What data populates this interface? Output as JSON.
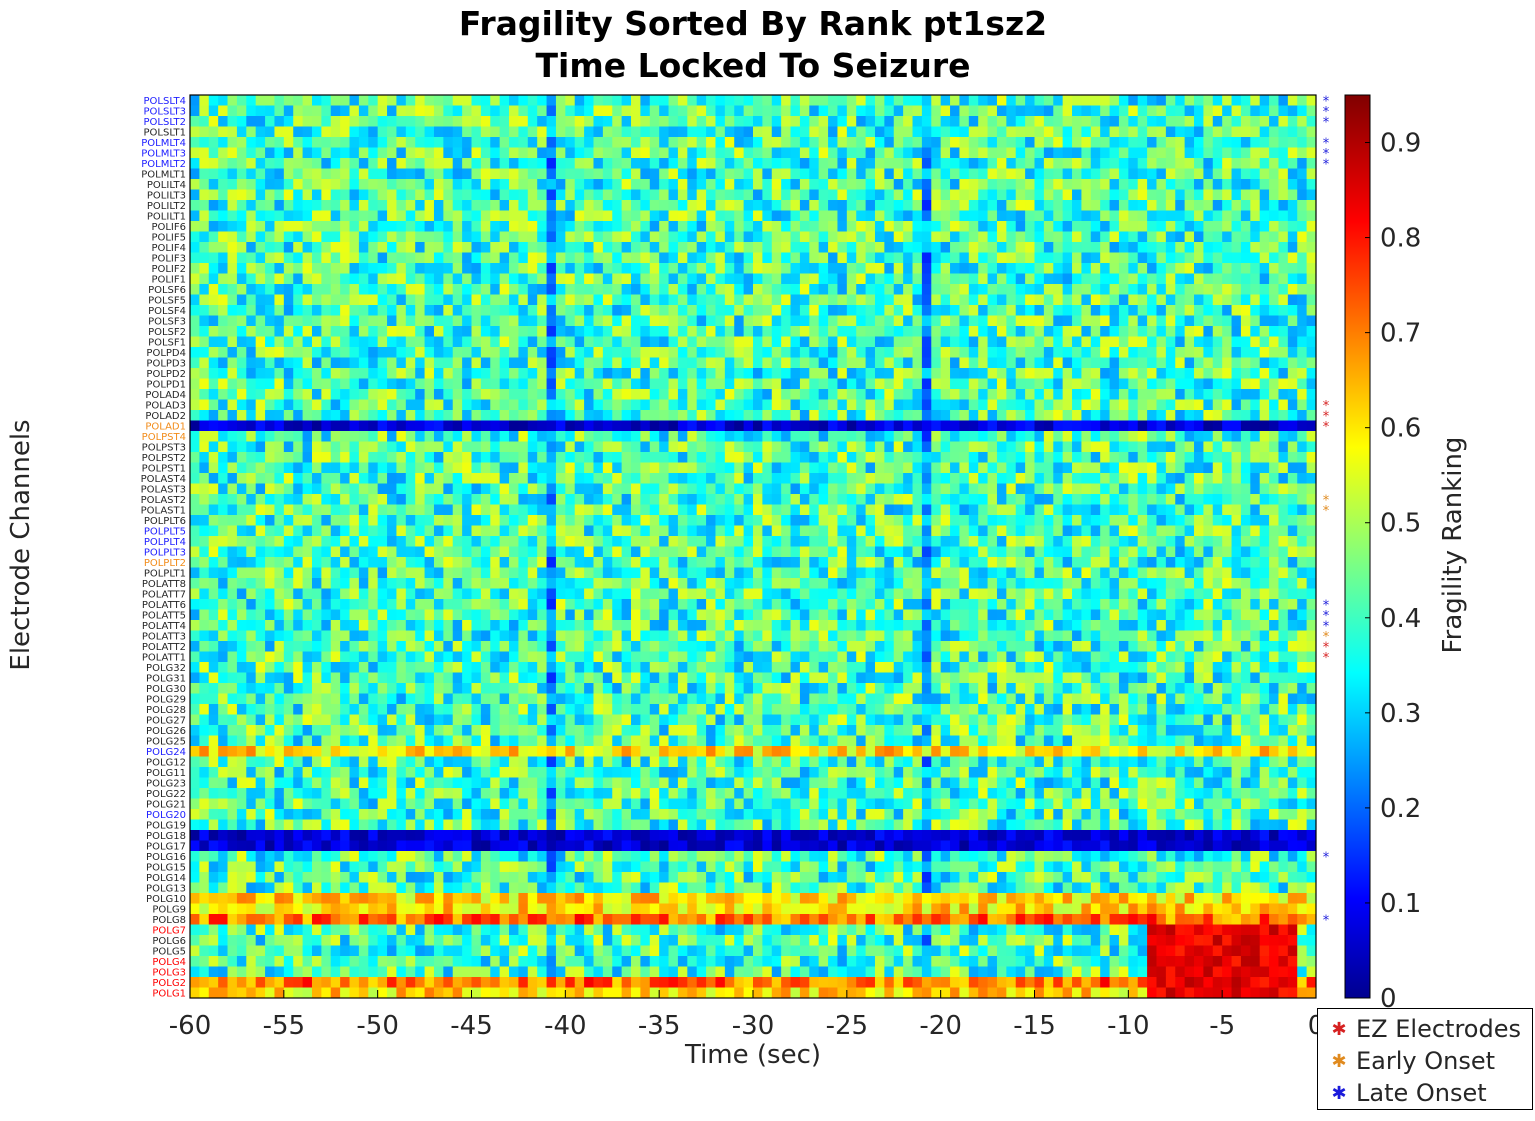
{
  "chart_data": {
    "type": "heatmap",
    "title_lines": [
      "Fragility Sorted By Rank pt1sz2",
      "Time Locked To Seizure"
    ],
    "xlabel": "Time (sec)",
    "ylabel": "Electrode Channels",
    "colorbar_label": "Fragility Ranking",
    "colormap": "jet",
    "clim": [
      0,
      0.95
    ],
    "colorbar_ticks": [
      "0",
      "0.1",
      "0.2",
      "0.3",
      "0.4",
      "0.5",
      "0.6",
      "0.7",
      "0.8",
      "0.9"
    ],
    "xlim": [
      -60,
      0
    ],
    "x_ticks": [
      "-60",
      "-55",
      "-50",
      "-45",
      "-40",
      "-35",
      "-30",
      "-25",
      "-20",
      "-15",
      "-10",
      "-5",
      "0"
    ],
    "channels": [
      {
        "name": "POLSLT4",
        "group": "late",
        "marker": "late"
      },
      {
        "name": "POLSLT3",
        "group": "late",
        "marker": "late"
      },
      {
        "name": "POLSLT2",
        "group": "late",
        "marker": "late"
      },
      {
        "name": "POLSLT1",
        "group": "none",
        "marker": ""
      },
      {
        "name": "POLMLT4",
        "group": "late",
        "marker": "late"
      },
      {
        "name": "POLMLT3",
        "group": "late",
        "marker": "late"
      },
      {
        "name": "POLMLT2",
        "group": "late",
        "marker": "late"
      },
      {
        "name": "POLMLT1",
        "group": "none",
        "marker": ""
      },
      {
        "name": "POLILT4",
        "group": "none",
        "marker": ""
      },
      {
        "name": "POLILT3",
        "group": "none",
        "marker": ""
      },
      {
        "name": "POLILT2",
        "group": "none",
        "marker": ""
      },
      {
        "name": "POLILT1",
        "group": "none",
        "marker": ""
      },
      {
        "name": "POLIF6",
        "group": "none",
        "marker": ""
      },
      {
        "name": "POLIF5",
        "group": "none",
        "marker": ""
      },
      {
        "name": "POLIF4",
        "group": "none",
        "marker": ""
      },
      {
        "name": "POLIF3",
        "group": "none",
        "marker": ""
      },
      {
        "name": "POLIF2",
        "group": "none",
        "marker": ""
      },
      {
        "name": "POLIF1",
        "group": "none",
        "marker": ""
      },
      {
        "name": "POLSF6",
        "group": "none",
        "marker": ""
      },
      {
        "name": "POLSF5",
        "group": "none",
        "marker": ""
      },
      {
        "name": "POLSF4",
        "group": "none",
        "marker": ""
      },
      {
        "name": "POLSF3",
        "group": "none",
        "marker": ""
      },
      {
        "name": "POLSF2",
        "group": "none",
        "marker": ""
      },
      {
        "name": "POLSF1",
        "group": "none",
        "marker": ""
      },
      {
        "name": "POLPD4",
        "group": "none",
        "marker": ""
      },
      {
        "name": "POLPD3",
        "group": "none",
        "marker": ""
      },
      {
        "name": "POLPD2",
        "group": "none",
        "marker": ""
      },
      {
        "name": "POLPD1",
        "group": "none",
        "marker": ""
      },
      {
        "name": "POLAD4",
        "group": "none",
        "marker": ""
      },
      {
        "name": "POLAD3",
        "group": "none",
        "marker": "ez"
      },
      {
        "name": "POLAD2",
        "group": "none",
        "marker": "ez"
      },
      {
        "name": "POLAD1",
        "group": "early",
        "marker": "ez"
      },
      {
        "name": "POLPST4",
        "group": "early",
        "marker": ""
      },
      {
        "name": "POLPST3",
        "group": "none",
        "marker": ""
      },
      {
        "name": "POLPST2",
        "group": "none",
        "marker": ""
      },
      {
        "name": "POLPST1",
        "group": "none",
        "marker": ""
      },
      {
        "name": "POLAST4",
        "group": "none",
        "marker": ""
      },
      {
        "name": "POLAST3",
        "group": "none",
        "marker": ""
      },
      {
        "name": "POLAST2",
        "group": "none",
        "marker": "early"
      },
      {
        "name": "POLAST1",
        "group": "none",
        "marker": "early"
      },
      {
        "name": "POLPLT6",
        "group": "none",
        "marker": ""
      },
      {
        "name": "POLPLT5",
        "group": "late",
        "marker": ""
      },
      {
        "name": "POLPLT4",
        "group": "late",
        "marker": ""
      },
      {
        "name": "POLPLT3",
        "group": "late",
        "marker": ""
      },
      {
        "name": "POLPLT2",
        "group": "early",
        "marker": ""
      },
      {
        "name": "POLPLT1",
        "group": "none",
        "marker": ""
      },
      {
        "name": "POLATT8",
        "group": "none",
        "marker": ""
      },
      {
        "name": "POLATT7",
        "group": "none",
        "marker": ""
      },
      {
        "name": "POLATT6",
        "group": "none",
        "marker": "late"
      },
      {
        "name": "POLATT5",
        "group": "none",
        "marker": "late"
      },
      {
        "name": "POLATT4",
        "group": "none",
        "marker": "late"
      },
      {
        "name": "POLATT3",
        "group": "none",
        "marker": "early"
      },
      {
        "name": "POLATT2",
        "group": "none",
        "marker": "ez"
      },
      {
        "name": "POLATT1",
        "group": "none",
        "marker": "ez"
      },
      {
        "name": "POLG32",
        "group": "none",
        "marker": ""
      },
      {
        "name": "POLG31",
        "group": "none",
        "marker": ""
      },
      {
        "name": "POLG30",
        "group": "none",
        "marker": ""
      },
      {
        "name": "POLG29",
        "group": "none",
        "marker": ""
      },
      {
        "name": "POLG28",
        "group": "none",
        "marker": ""
      },
      {
        "name": "POLG27",
        "group": "none",
        "marker": ""
      },
      {
        "name": "POLG26",
        "group": "none",
        "marker": ""
      },
      {
        "name": "POLG25",
        "group": "none",
        "marker": ""
      },
      {
        "name": "POLG24",
        "group": "late",
        "marker": ""
      },
      {
        "name": "POLG12",
        "group": "none",
        "marker": ""
      },
      {
        "name": "POLG11",
        "group": "none",
        "marker": ""
      },
      {
        "name": "POLG23",
        "group": "none",
        "marker": ""
      },
      {
        "name": "POLG22",
        "group": "none",
        "marker": ""
      },
      {
        "name": "POLG21",
        "group": "none",
        "marker": ""
      },
      {
        "name": "POLG20",
        "group": "late",
        "marker": ""
      },
      {
        "name": "POLG19",
        "group": "none",
        "marker": ""
      },
      {
        "name": "POLG18",
        "group": "none",
        "marker": ""
      },
      {
        "name": "POLG17",
        "group": "none",
        "marker": ""
      },
      {
        "name": "POLG16",
        "group": "none",
        "marker": "late"
      },
      {
        "name": "POLG15",
        "group": "none",
        "marker": ""
      },
      {
        "name": "POLG14",
        "group": "none",
        "marker": ""
      },
      {
        "name": "POLG13",
        "group": "none",
        "marker": ""
      },
      {
        "name": "POLG10",
        "group": "none",
        "marker": ""
      },
      {
        "name": "POLG9",
        "group": "none",
        "marker": ""
      },
      {
        "name": "POLG8",
        "group": "none",
        "marker": "late"
      },
      {
        "name": "POLG7",
        "group": "ez",
        "marker": ""
      },
      {
        "name": "POLG6",
        "group": "none",
        "marker": ""
      },
      {
        "name": "POLG5",
        "group": "none",
        "marker": ""
      },
      {
        "name": "POLG4",
        "group": "ez",
        "marker": ""
      },
      {
        "name": "POLG3",
        "group": "ez",
        "marker": ""
      },
      {
        "name": "POLG2",
        "group": "ez",
        "marker": ""
      },
      {
        "name": "POLG1",
        "group": "ez",
        "marker": ""
      }
    ],
    "row_profiles": {
      "very_low_rows": [
        "POLAD1",
        "POLG18",
        "POLG17"
      ],
      "high_rows": [
        "POLG8",
        "POLG2"
      ],
      "mid_high_rows": [
        "POLG24",
        "POLG10",
        "POLG9",
        "POLG1"
      ],
      "seizure_hotspot_rows": [
        "POLG7",
        "POLG6",
        "POLG5",
        "POLG4",
        "POLG3",
        "POLG2",
        "POLG1"
      ],
      "seizure_hotspot_time": [
        -9,
        -1
      ],
      "seizure_hotspot_value": 0.9,
      "low_time_columns": [
        -40.8,
        -20.8
      ],
      "baseline_value": 0.42
    },
    "legend": {
      "position": "outside-bottom-right",
      "items": [
        {
          "key": "ez",
          "label": "EZ Electrodes",
          "color": "#d62020"
        },
        {
          "key": "early",
          "label": "Early Onset",
          "color": "#e08a1e"
        },
        {
          "key": "late",
          "label": "Late Onset",
          "color": "#1a1adb"
        }
      ]
    },
    "label_colors": {
      "none": "#262626",
      "ez": "#ff0000",
      "early": "#f28c1a",
      "late": "#2020ff"
    }
  }
}
